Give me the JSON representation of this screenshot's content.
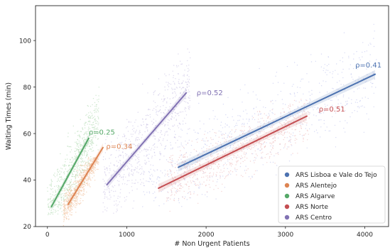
{
  "chart_data": {
    "type": "scatter",
    "xlabel": "# Non Urgent Patients",
    "ylabel": "Waiting Times (min)",
    "xlim": [
      -150,
      4300
    ],
    "ylim": [
      20,
      115
    ],
    "xticks": [
      0,
      1000,
      2000,
      3000,
      4000
    ],
    "yticks": [
      20,
      40,
      60,
      80,
      100
    ],
    "grid": false,
    "legend_position": "bottom-right",
    "series": [
      {
        "name": "ARS Lisboa e Vale do Tejo",
        "color": "#4c72b0",
        "scatter_color": "#c9cdf0",
        "fit_line": {
          "x": [
            1650,
            4130
          ],
          "y": [
            45.5,
            85.5
          ]
        },
        "annotation": {
          "text": "ρ=0.41",
          "x": 3880,
          "y": 88.5
        },
        "cloud": {
          "x_range": [
            1200,
            4150
          ],
          "y_range": [
            28,
            110
          ]
        }
      },
      {
        "name": "ARS Alentejo",
        "color": "#dd8452",
        "scatter_color": "#f3c8a8",
        "fit_line": {
          "x": [
            260,
            700
          ],
          "y": [
            29.5,
            54
          ]
        },
        "annotation": {
          "text": "ρ=0.34",
          "x": 740,
          "y": 53.5
        },
        "cloud": {
          "x_range": [
            200,
            650
          ],
          "y_range": [
            20,
            50
          ]
        }
      },
      {
        "name": "ARS Algarve",
        "color": "#55a868",
        "scatter_color": "#bfe0bf",
        "fit_line": {
          "x": [
            50,
            520
          ],
          "y": [
            28.5,
            58
          ]
        },
        "annotation": {
          "text": "ρ=0.25",
          "x": 520,
          "y": 59.5
        },
        "cloud": {
          "x_range": [
            0,
            650
          ],
          "y_range": [
            25,
            80
          ]
        }
      },
      {
        "name": "ARS Norte",
        "color": "#c44e52",
        "scatter_color": "#f0c4c4",
        "fit_line": {
          "x": [
            1400,
            3270
          ],
          "y": [
            36.5,
            67.5
          ]
        },
        "annotation": {
          "text": "ρ=0.51",
          "x": 3420,
          "y": 69.5
        },
        "cloud": {
          "x_range": [
            1500,
            3300
          ],
          "y_range": [
            25,
            75
          ]
        }
      },
      {
        "name": "ARS Centro",
        "color": "#8172b3",
        "scatter_color": "#d2cbe8",
        "fit_line": {
          "x": [
            750,
            1750
          ],
          "y": [
            38,
            77.5
          ]
        },
        "annotation": {
          "text": "ρ=0.52",
          "x": 1880,
          "y": 76.5
        },
        "cloud": {
          "x_range": [
            700,
            1800
          ],
          "y_range": [
            25,
            105
          ]
        }
      }
    ]
  }
}
